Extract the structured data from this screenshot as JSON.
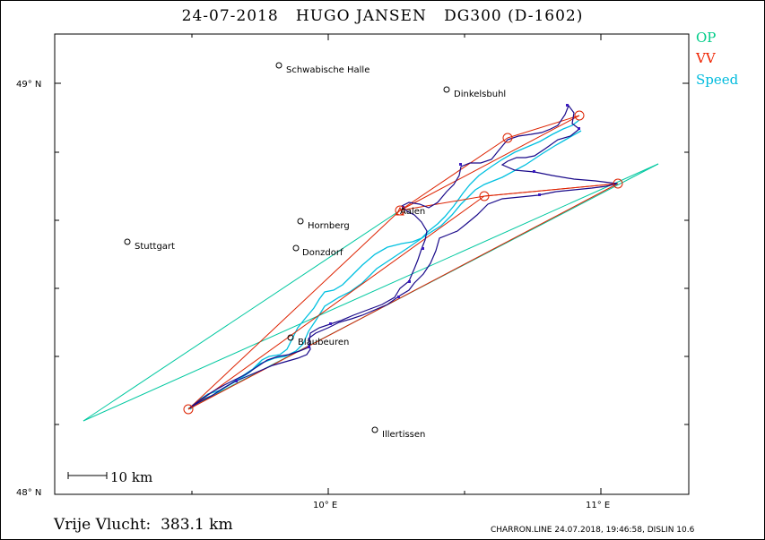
{
  "header": {
    "date": "24-07-2018",
    "pilot": "HUGO JANSEN",
    "glider": "DG300 (D-1602)"
  },
  "legend": {
    "items": [
      {
        "label": "OP",
        "color": "#00cc88"
      },
      {
        "label": "VV",
        "color": "#ee2200"
      },
      {
        "label": "Speed",
        "color": "#00bbdd"
      }
    ]
  },
  "axes": {
    "lat_labels": [
      "49° N",
      "48° N"
    ],
    "lon_labels": [
      "10° E",
      "11° E"
    ]
  },
  "scale": {
    "label": "10 km"
  },
  "towns": [
    {
      "name": "Schwabische Halle"
    },
    {
      "name": "Dinkelsbuhl"
    },
    {
      "name": "Stuttgart"
    },
    {
      "name": "Hornberg"
    },
    {
      "name": "Donzdorf"
    },
    {
      "name": "Aalen"
    },
    {
      "name": "Blaubeuren"
    },
    {
      "name": "Illertissen"
    }
  ],
  "footer": {
    "distance": "Vrije Vlucht:  383.1 km",
    "credit": "CHARRON.LINE 24.07.2018, 19:46:58, DISLIN 10.6"
  },
  "colors": {
    "track": "#1a0a8a",
    "sector": "#00c8a0",
    "speed": "#00c0e0",
    "task": "#dd2200"
  }
}
